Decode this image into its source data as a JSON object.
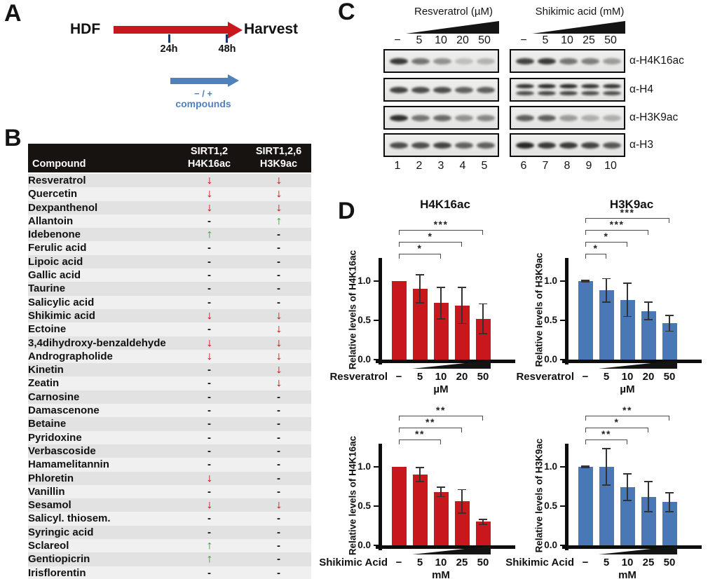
{
  "colors": {
    "red": "#c9171e",
    "blue": "#4a77b6",
    "timeline_blue": "#4f81bd",
    "table_arrow_down": "#d40f17",
    "table_arrow_up": "#3c9e3c",
    "table_header_bg": "#171310",
    "row_even": "#e2e2e2",
    "row_odd": "#f0f0f0"
  },
  "panels": {
    "a": {
      "label": "A",
      "start": "HDF",
      "end": "Harvest",
      "tick1": "24h",
      "tick2": "48h",
      "treatment_line1": "− / +",
      "treatment_line2": "compounds"
    },
    "b": {
      "label": "B",
      "header": {
        "col1": "Compound",
        "col2_line1": "SIRT1,2",
        "col2_line2": "H4K16ac",
        "col3_line1": "SIRT1,2,6",
        "col3_line2": "H3K9ac"
      },
      "rows": [
        {
          "name": "Resveratrol",
          "h4k16ac": "down",
          "h3k9ac": "down"
        },
        {
          "name": "Quercetin",
          "h4k16ac": "down",
          "h3k9ac": "down"
        },
        {
          "name": "Dexpanthenol",
          "h4k16ac": "down",
          "h3k9ac": "down"
        },
        {
          "name": "Allantoin",
          "h4k16ac": "-",
          "h3k9ac": "up"
        },
        {
          "name": "Idebenone",
          "h4k16ac": "up",
          "h3k9ac": "-"
        },
        {
          "name": "Ferulic acid",
          "h4k16ac": "-",
          "h3k9ac": "-"
        },
        {
          "name": "Lipoic acid",
          "h4k16ac": "-",
          "h3k9ac": "-"
        },
        {
          "name": "Gallic acid",
          "h4k16ac": "-",
          "h3k9ac": "-"
        },
        {
          "name": "Taurine",
          "h4k16ac": "-",
          "h3k9ac": "-"
        },
        {
          "name": "Salicylic acid",
          "h4k16ac": "-",
          "h3k9ac": "-"
        },
        {
          "name": "Shikimic acid",
          "h4k16ac": "down",
          "h3k9ac": "down"
        },
        {
          "name": "Ectoine",
          "h4k16ac": "-",
          "h3k9ac": "down"
        },
        {
          "name": "3,4dihydroxy-benzaldehyde",
          "h4k16ac": "down",
          "h3k9ac": "down"
        },
        {
          "name": "Andrographolide",
          "h4k16ac": "down",
          "h3k9ac": "down"
        },
        {
          "name": "Kinetin",
          "h4k16ac": "-",
          "h3k9ac": "down"
        },
        {
          "name": "Zeatin",
          "h4k16ac": "-",
          "h3k9ac": "down"
        },
        {
          "name": "Carnosine",
          "h4k16ac": "-",
          "h3k9ac": "-"
        },
        {
          "name": "Damascenone",
          "h4k16ac": "-",
          "h3k9ac": "-"
        },
        {
          "name": "Betaine",
          "h4k16ac": "-",
          "h3k9ac": "-"
        },
        {
          "name": "Pyridoxine",
          "h4k16ac": "-",
          "h3k9ac": "-"
        },
        {
          "name": "Verbascoside",
          "h4k16ac": "-",
          "h3k9ac": "-"
        },
        {
          "name": "Hamamelitannin",
          "h4k16ac": "-",
          "h3k9ac": "-"
        },
        {
          "name": "Phloretin",
          "h4k16ac": "down",
          "h3k9ac": "-"
        },
        {
          "name": "Vanillin",
          "h4k16ac": "-",
          "h3k9ac": "-"
        },
        {
          "name": "Sesamol",
          "h4k16ac": "down",
          "h3k9ac": "down"
        },
        {
          "name": "Salicyl. thiosem.",
          "h4k16ac": "-",
          "h3k9ac": "-"
        },
        {
          "name": "Syringic acid",
          "h4k16ac": "-",
          "h3k9ac": "-"
        },
        {
          "name": "Sclareol",
          "h4k16ac": "up",
          "h3k9ac": "-"
        },
        {
          "name": "Gentiopicrin",
          "h4k16ac": "up",
          "h3k9ac": "-"
        },
        {
          "name": "Irisflorentin",
          "h4k16ac": "-",
          "h3k9ac": "-"
        }
      ]
    },
    "c": {
      "label": "C",
      "groups": [
        {
          "title": "Resveratrol (µM)",
          "doses": [
            "−",
            "5",
            "10",
            "20",
            "50"
          ],
          "lanes": [
            "1",
            "2",
            "3",
            "4",
            "5"
          ]
        },
        {
          "title": "Shikimic acid (mM)",
          "doses": [
            "−",
            "5",
            "10",
            "25",
            "50"
          ],
          "lanes": [
            "6",
            "7",
            "8",
            "9",
            "10"
          ]
        }
      ],
      "blots": [
        {
          "label": "α-H4K16ac",
          "groups": [
            [
              0.9,
              0.6,
              0.45,
              0.22,
              0.28
            ],
            [
              0.85,
              0.9,
              0.6,
              0.55,
              0.4
            ]
          ],
          "double": [
            false,
            false
          ]
        },
        {
          "label": "α-H4",
          "groups": [
            [
              0.85,
              0.8,
              0.8,
              0.7,
              0.7
            ],
            [
              0.95,
              1,
              1,
              0.95,
              0.95
            ]
          ],
          "double": [
            false,
            true
          ]
        },
        {
          "label": "α-H3K9ac",
          "groups": [
            [
              0.95,
              0.6,
              0.65,
              0.45,
              0.5
            ],
            [
              0.7,
              0.7,
              0.4,
              0.3,
              0.3
            ]
          ],
          "double": [
            false,
            false
          ]
        },
        {
          "label": "α-H3",
          "groups": [
            [
              0.8,
              0.8,
              0.85,
              0.7,
              0.7
            ],
            [
              1,
              0.9,
              0.9,
              0.85,
              0.75
            ]
          ],
          "double": [
            false,
            false
          ]
        }
      ]
    },
    "d": {
      "label": "D"
    }
  },
  "chart_data": [
    {
      "type": "bar",
      "title": "H4K16ac",
      "ylabel": "Relative levels of H4K16ac",
      "xlabel_compound": "Resveratrol",
      "unit": "µM",
      "categories": [
        "−",
        "5",
        "10",
        "20",
        "50"
      ],
      "values": [
        1.0,
        0.9,
        0.72,
        0.69,
        0.52
      ],
      "errors": [
        0,
        0.18,
        0.2,
        0.23,
        0.19
      ],
      "significance": [
        {
          "to": 2,
          "label": "*"
        },
        {
          "to": 3,
          "label": "*"
        },
        {
          "to": 4,
          "label": "***"
        }
      ],
      "bar_color": "#c9171e",
      "ylim": [
        0,
        1.25
      ],
      "yticks": [
        0.0,
        0.5,
        1.0
      ],
      "grid": false
    },
    {
      "type": "bar",
      "title": "H3K9ac",
      "ylabel": "Relative levels of H3K9ac",
      "xlabel_compound": "Resveratrol",
      "unit": "µM",
      "categories": [
        "−",
        "5",
        "10",
        "20",
        "50"
      ],
      "values": [
        1.0,
        0.88,
        0.76,
        0.62,
        0.46
      ],
      "errors": [
        0.01,
        0.15,
        0.21,
        0.11,
        0.1
      ],
      "significance": [
        {
          "to": 1,
          "label": "*"
        },
        {
          "to": 2,
          "label": "*"
        },
        {
          "to": 3,
          "label": "***"
        },
        {
          "to": 4,
          "label": "***"
        }
      ],
      "bar_color": "#4a77b6",
      "ylim": [
        0,
        1.25
      ],
      "yticks": [
        0.0,
        0.5,
        1.0
      ],
      "grid": false
    },
    {
      "type": "bar",
      "title": "",
      "ylabel": "Relative levels of H4K16ac",
      "xlabel_compound": "Shikimic Acid",
      "unit": "mM",
      "categories": [
        "−",
        "5",
        "10",
        "25",
        "50"
      ],
      "values": [
        1.0,
        0.9,
        0.68,
        0.56,
        0.3
      ],
      "errors": [
        0,
        0.09,
        0.06,
        0.15,
        0.03
      ],
      "significance": [
        {
          "to": 2,
          "label": "**"
        },
        {
          "to": 3,
          "label": "**"
        },
        {
          "to": 4,
          "label": "**"
        }
      ],
      "bar_color": "#c9171e",
      "ylim": [
        0,
        1.25
      ],
      "yticks": [
        0.0,
        0.5,
        1.0
      ],
      "grid": false
    },
    {
      "type": "bar",
      "title": "",
      "ylabel": "Relative levels of H3K9ac",
      "xlabel_compound": "Shikimic Acid",
      "unit": "mM",
      "categories": [
        "−",
        "5",
        "10",
        "25",
        "50"
      ],
      "values": [
        1.0,
        1.0,
        0.74,
        0.62,
        0.55
      ],
      "errors": [
        0.01,
        0.23,
        0.17,
        0.19,
        0.12
      ],
      "significance": [
        {
          "to": 2,
          "label": "**"
        },
        {
          "to": 3,
          "label": "*"
        },
        {
          "to": 4,
          "label": "**"
        }
      ],
      "bar_color": "#4a77b6",
      "ylim": [
        0,
        1.25
      ],
      "yticks": [
        0.0,
        0.5,
        1.0
      ],
      "grid": false
    }
  ]
}
